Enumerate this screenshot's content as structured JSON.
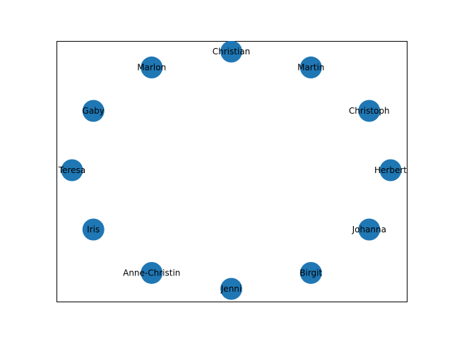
{
  "diagram": {
    "type": "network-graph",
    "layout": "circular",
    "node_color": "#1f77b4",
    "edge_count": 0,
    "nodes": [
      {
        "label": "Christian"
      },
      {
        "label": "Martin"
      },
      {
        "label": "Christoph"
      },
      {
        "label": "Herbert"
      },
      {
        "label": "Johanna"
      },
      {
        "label": "Birgit"
      },
      {
        "label": "Jenni"
      },
      {
        "label": "Anne-Christin"
      },
      {
        "label": "Iris"
      },
      {
        "label": "Teresa"
      },
      {
        "label": "Gaby"
      },
      {
        "label": "Marlon"
      }
    ]
  }
}
